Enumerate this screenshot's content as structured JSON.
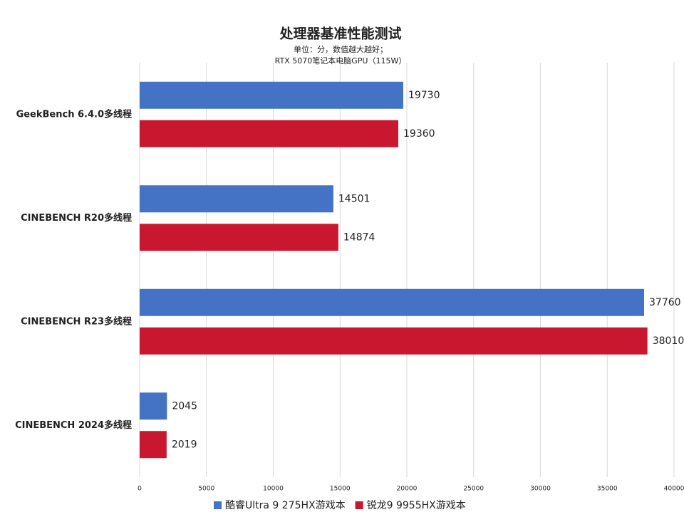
{
  "chart_data": {
    "type": "hbar",
    "title": "处理器基准性能测试",
    "subtitle": [
      "单位：分，数值越大越好；",
      "RTX 5070笔记本电脑GPU（115W）"
    ],
    "categories": [
      "GeekBench 6.4.0多线程",
      "CINEBENCH R20多线程",
      "CINEBENCH R23多线程",
      "CINEBENCH 2024多线程"
    ],
    "series": [
      {
        "name": "酷睿Ultra 9 275HX游戏本",
        "color": "#4472c4",
        "values": [
          19730,
          14501,
          37760,
          2045
        ]
      },
      {
        "name": "锐龙9 9955HX游戏本",
        "color": "#c8172f",
        "values": [
          19360,
          14874,
          38010,
          2019
        ]
      }
    ],
    "xlim": [
      0,
      40000
    ],
    "xticks": [
      0,
      5000,
      10000,
      15000,
      20000,
      25000,
      30000,
      35000,
      40000
    ],
    "grid": true,
    "legend": "bottom"
  }
}
